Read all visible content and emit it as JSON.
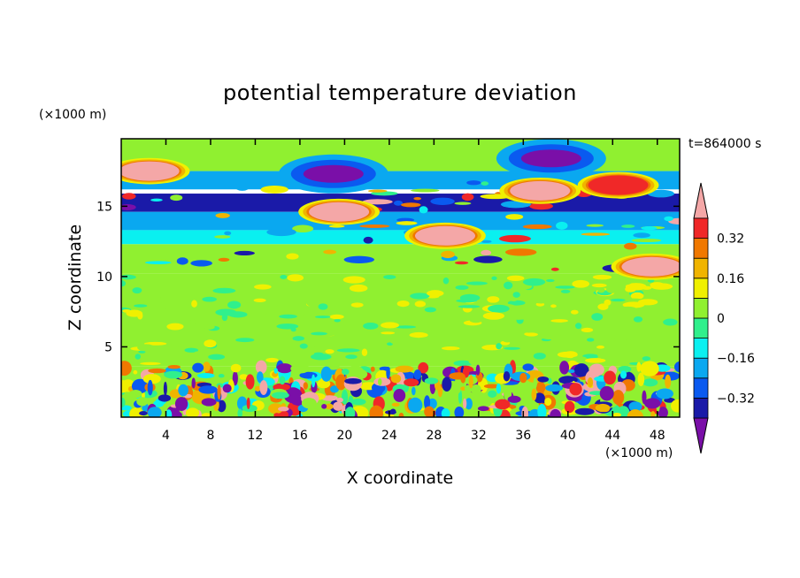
{
  "chart_data": {
    "type": "heatmap",
    "title": "potential temperature deviation",
    "xlabel": "X coordinate",
    "ylabel": "Z coordinate",
    "x_unit": "(×1000 m)",
    "y_unit": "(×1000 m)",
    "time_label": "t=864000 s",
    "xlim": [
      0,
      50
    ],
    "ylim": [
      0,
      19.8
    ],
    "x_ticks": [
      4,
      8,
      12,
      16,
      20,
      24,
      28,
      32,
      36,
      40,
      44,
      48
    ],
    "y_ticks": [
      5,
      10,
      15
    ],
    "colorbar": {
      "ticks": [
        0.32,
        0.16,
        0,
        -0.16,
        -0.32
      ],
      "tick_labels": [
        "0.32",
        "0.16",
        "0",
        "−0.16",
        "−0.32"
      ],
      "levels": [
        -0.4,
        -0.32,
        -0.24,
        -0.16,
        -0.08,
        0,
        0.08,
        0.16,
        0.24,
        0.32,
        0.4
      ],
      "colors": [
        "#7a0fa8",
        "#1a1aa8",
        "#0a5af0",
        "#0aa8f0",
        "#0af0f0",
        "#30f08c",
        "#90f030",
        "#f0f000",
        "#f0b400",
        "#f07800",
        "#f02828",
        "#f4a7a7"
      ]
    },
    "field_bands": [
      {
        "z_range": [
          17.5,
          19.8
        ],
        "level": 0
      },
      {
        "z_range": [
          16.2,
          17.5
        ],
        "level": -0.2
      },
      {
        "z_range": [
          14.6,
          15.9
        ],
        "level": -0.4
      },
      {
        "z_range": [
          13.3,
          14.6
        ],
        "level": -0.24
      },
      {
        "z_range": [
          12.3,
          13.3
        ],
        "level": -0.12
      },
      {
        "z_range": [
          10.2,
          12.3
        ],
        "level": 0.02
      },
      {
        "z_range": [
          3.6,
          10.2
        ],
        "level": 0.06
      },
      {
        "z_range": [
          0,
          3.6
        ],
        "level": 0.0
      }
    ],
    "warm_anomalies": [
      {
        "x": 2.5,
        "z": 17.5,
        "value": 0.45
      },
      {
        "x": 19.5,
        "z": 14.6,
        "value": 0.45
      },
      {
        "x": 29.0,
        "z": 12.9,
        "value": 0.4
      },
      {
        "x": 37.5,
        "z": 16.1,
        "value": 0.45
      },
      {
        "x": 44.5,
        "z": 16.5,
        "value": 0.35
      },
      {
        "x": 47.5,
        "z": 10.7,
        "value": 0.4
      }
    ],
    "cold_anomalies": [
      {
        "x": 19.0,
        "z": 17.3,
        "value": -0.45
      },
      {
        "x": 38.5,
        "z": 18.4,
        "value": -0.45
      }
    ]
  }
}
